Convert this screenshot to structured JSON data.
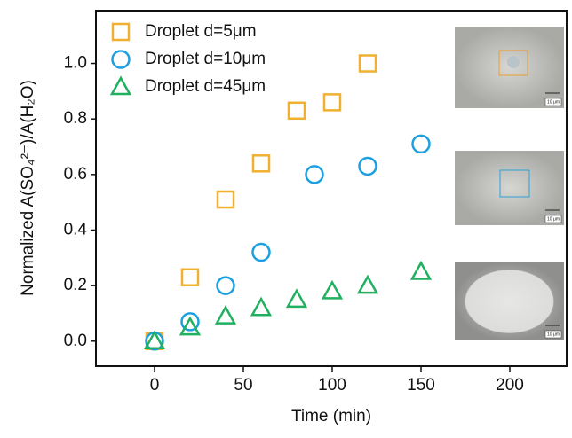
{
  "chart_data": {
    "type": "scatter",
    "x_label": "Time (min)",
    "y_label": "Normalized A(SO₄²⁻)/A(H₂O)",
    "xlim": [
      -33,
      232
    ],
    "ylim": [
      -0.09,
      1.19
    ],
    "xticks": [
      0,
      50,
      100,
      150,
      200
    ],
    "yticks": [
      {
        "value": 0,
        "label": "0.0"
      },
      {
        "value": 0.2,
        "label": "0.2"
      },
      {
        "value": 0.4,
        "label": "0.4"
      },
      {
        "value": 0.6,
        "label": "0.6"
      },
      {
        "value": 0.8,
        "label": "0.8"
      },
      {
        "value": 1.0,
        "label": "1.0"
      }
    ],
    "legend": "upper left",
    "series": [
      {
        "name": "Droplet d=5μm",
        "color": "#f0b030",
        "marker": "square",
        "x": [
          0,
          20,
          40,
          60,
          80,
          100,
          120
        ],
        "values": [
          0,
          0.23,
          0.51,
          0.64,
          0.83,
          0.86,
          1.0
        ]
      },
      {
        "name": "Droplet d=10μm",
        "color": "#1ca0e0",
        "marker": "circle",
        "x": [
          0,
          20,
          40,
          60,
          90,
          120,
          150
        ],
        "values": [
          0,
          0.07,
          0.2,
          0.32,
          0.6,
          0.63,
          0.71
        ]
      },
      {
        "name": "Droplet d=45μm",
        "color": "#20b060",
        "marker": "triangle",
        "x": [
          0,
          20,
          40,
          60,
          80,
          100,
          120,
          150
        ],
        "values": [
          0,
          0.05,
          0.09,
          0.12,
          0.15,
          0.18,
          0.2,
          0.25
        ]
      }
    ]
  },
  "insets": [
    {
      "scale_label": "10 μm"
    },
    {
      "scale_label": "10 μm"
    },
    {
      "scale_label": "10 μm"
    }
  ]
}
